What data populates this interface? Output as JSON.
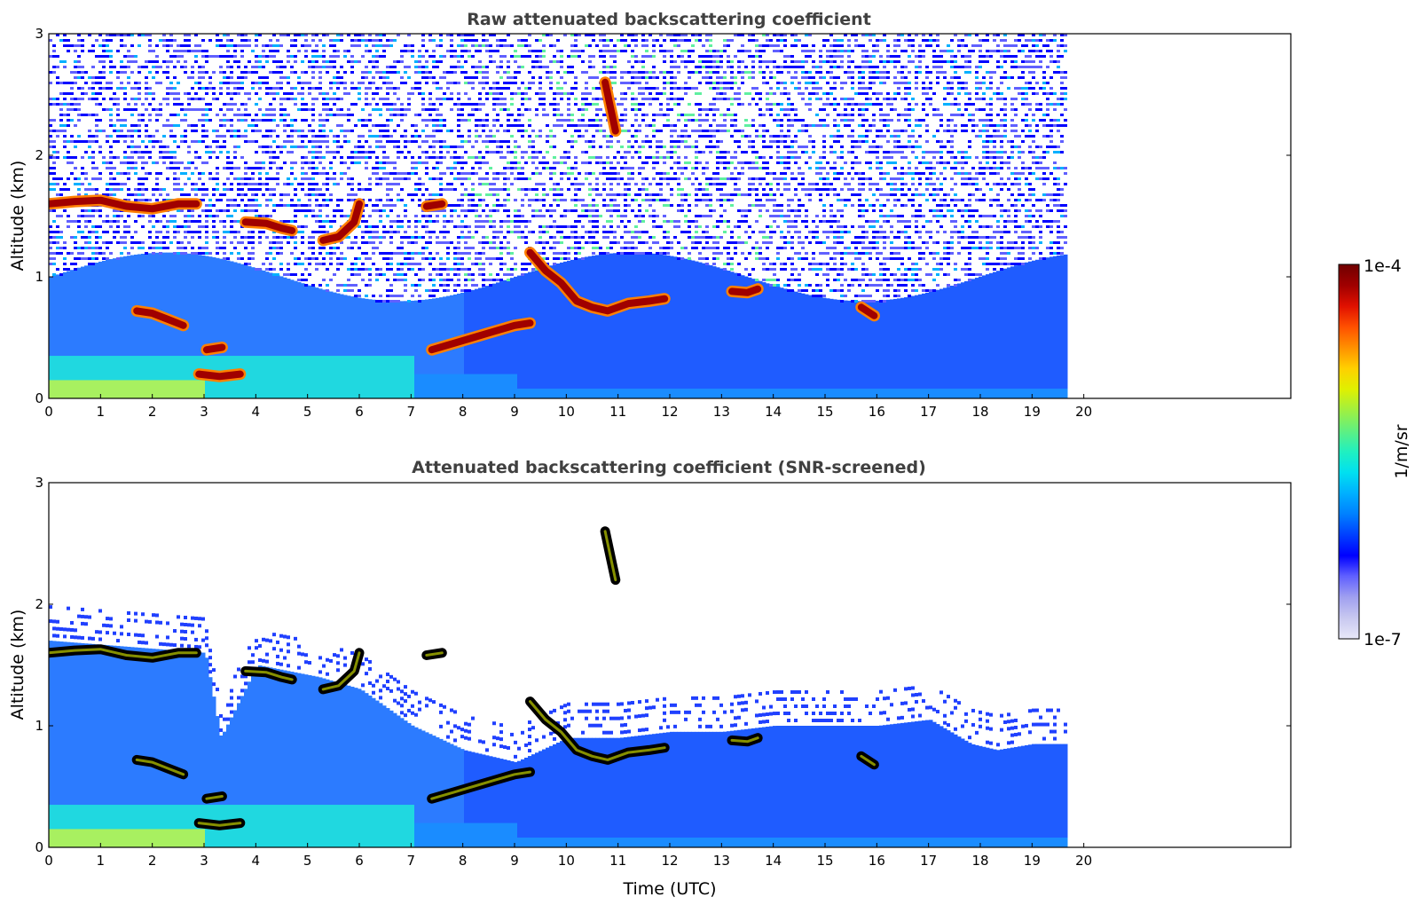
{
  "chart_data": [
    {
      "type": "heatmap",
      "title": "Raw attenuated backscattering coefficient",
      "xlabel": "",
      "ylabel": "Altitude (km)",
      "xlim": [
        0,
        24
      ],
      "ylim": [
        0,
        3
      ],
      "x_ticks": [
        "0",
        "1",
        "2",
        "3",
        "4",
        "5",
        "6",
        "7",
        "8",
        "9",
        "10",
        "11",
        "12",
        "13",
        "14",
        "15",
        "16",
        "17",
        "18",
        "19",
        "20"
      ],
      "y_ticks": [
        "0",
        "1",
        "2",
        "3"
      ],
      "data_end_time": 19.65,
      "colormap": "jet",
      "grid": false,
      "layers": [
        {
          "name": "cloud",
          "points": [
            [
              0,
              1.6
            ],
            [
              0.5,
              1.62
            ],
            [
              1,
              1.63
            ],
            [
              1.5,
              1.58
            ],
            [
              2,
              1.56
            ],
            [
              2.5,
              1.6
            ],
            [
              2.85,
              1.6
            ]
          ]
        },
        {
          "name": "cloud",
          "points": [
            [
              3.05,
              0.4
            ],
            [
              3.35,
              0.42
            ]
          ]
        },
        {
          "name": "cloud",
          "points": [
            [
              3.8,
              1.45
            ],
            [
              4.2,
              1.44
            ],
            [
              4.5,
              1.4
            ],
            [
              4.7,
              1.38
            ]
          ]
        },
        {
          "name": "cloud",
          "points": [
            [
              5.3,
              1.3
            ],
            [
              5.6,
              1.33
            ],
            [
              5.9,
              1.45
            ],
            [
              6.0,
              1.6
            ]
          ]
        },
        {
          "name": "cloud",
          "points": [
            [
              7.3,
              1.58
            ],
            [
              7.6,
              1.6
            ]
          ]
        },
        {
          "name": "cloud",
          "points": [
            [
              1.7,
              0.72
            ],
            [
              2.0,
              0.7
            ],
            [
              2.3,
              0.65
            ],
            [
              2.6,
              0.6
            ]
          ]
        },
        {
          "name": "cloud",
          "points": [
            [
              7.4,
              0.4
            ],
            [
              7.8,
              0.45
            ],
            [
              8.2,
              0.5
            ],
            [
              8.6,
              0.55
            ],
            [
              9.0,
              0.6
            ],
            [
              9.3,
              0.62
            ]
          ]
        },
        {
          "name": "cloud",
          "points": [
            [
              9.3,
              1.2
            ],
            [
              9.6,
              1.05
            ],
            [
              9.9,
              0.95
            ],
            [
              10.2,
              0.8
            ],
            [
              10.5,
              0.75
            ],
            [
              10.8,
              0.72
            ],
            [
              11.2,
              0.78
            ],
            [
              11.6,
              0.8
            ],
            [
              11.9,
              0.82
            ]
          ]
        },
        {
          "name": "cloud",
          "points": [
            [
              10.75,
              2.6
            ],
            [
              10.85,
              2.4
            ],
            [
              10.95,
              2.2
            ]
          ]
        },
        {
          "name": "cloud",
          "points": [
            [
              13.2,
              0.88
            ],
            [
              13.5,
              0.87
            ],
            [
              13.7,
              0.9
            ]
          ]
        },
        {
          "name": "cloud",
          "points": [
            [
              15.7,
              0.75
            ],
            [
              15.95,
              0.68
            ]
          ]
        },
        {
          "name": "cloud",
          "points": [
            [
              2.9,
              0.2
            ],
            [
              3.3,
              0.18
            ],
            [
              3.7,
              0.2
            ]
          ]
        }
      ]
    },
    {
      "type": "heatmap",
      "title": "Attenuated backscattering coefficient (SNR-screened)",
      "xlabel": "Time (UTC)",
      "ylabel": "Altitude (km)",
      "xlim": [
        0,
        24
      ],
      "ylim": [
        0,
        3
      ],
      "x_ticks": [
        "0",
        "1",
        "2",
        "3",
        "4",
        "5",
        "6",
        "7",
        "8",
        "9",
        "10",
        "11",
        "12",
        "13",
        "14",
        "15",
        "16",
        "17",
        "18",
        "19",
        "20"
      ],
      "y_ticks": [
        "0",
        "1",
        "2",
        "3"
      ],
      "data_end_time": 19.65,
      "colormap": "jet",
      "grid": false,
      "layers": [
        {
          "name": "cloud",
          "points": [
            [
              0,
              1.6
            ],
            [
              0.5,
              1.62
            ],
            [
              1,
              1.63
            ],
            [
              1.5,
              1.58
            ],
            [
              2,
              1.56
            ],
            [
              2.5,
              1.6
            ],
            [
              2.85,
              1.6
            ]
          ]
        },
        {
          "name": "cloud",
          "points": [
            [
              3.05,
              0.4
            ],
            [
              3.35,
              0.42
            ]
          ]
        },
        {
          "name": "cloud",
          "points": [
            [
              3.8,
              1.45
            ],
            [
              4.2,
              1.44
            ],
            [
              4.5,
              1.4
            ],
            [
              4.7,
              1.38
            ]
          ]
        },
        {
          "name": "cloud",
          "points": [
            [
              5.3,
              1.3
            ],
            [
              5.6,
              1.33
            ],
            [
              5.9,
              1.45
            ],
            [
              6.0,
              1.6
            ]
          ]
        },
        {
          "name": "cloud",
          "points": [
            [
              7.3,
              1.58
            ],
            [
              7.6,
              1.6
            ]
          ]
        },
        {
          "name": "cloud",
          "points": [
            [
              1.7,
              0.72
            ],
            [
              2.0,
              0.7
            ],
            [
              2.3,
              0.65
            ],
            [
              2.6,
              0.6
            ]
          ]
        },
        {
          "name": "cloud",
          "points": [
            [
              7.4,
              0.4
            ],
            [
              7.8,
              0.45
            ],
            [
              8.2,
              0.5
            ],
            [
              8.6,
              0.55
            ],
            [
              9.0,
              0.6
            ],
            [
              9.3,
              0.62
            ]
          ]
        },
        {
          "name": "cloud",
          "points": [
            [
              9.3,
              1.2
            ],
            [
              9.6,
              1.05
            ],
            [
              9.9,
              0.95
            ],
            [
              10.2,
              0.8
            ],
            [
              10.5,
              0.75
            ],
            [
              10.8,
              0.72
            ],
            [
              11.2,
              0.78
            ],
            [
              11.6,
              0.8
            ],
            [
              11.9,
              0.82
            ]
          ]
        },
        {
          "name": "cloud",
          "points": [
            [
              10.75,
              2.6
            ],
            [
              10.85,
              2.4
            ],
            [
              10.95,
              2.2
            ]
          ]
        },
        {
          "name": "cloud",
          "points": [
            [
              13.2,
              0.88
            ],
            [
              13.5,
              0.87
            ],
            [
              13.7,
              0.9
            ]
          ]
        },
        {
          "name": "cloud",
          "points": [
            [
              15.7,
              0.75
            ],
            [
              15.95,
              0.68
            ]
          ]
        },
        {
          "name": "cloud",
          "points": [
            [
              2.9,
              0.2
            ],
            [
              3.3,
              0.18
            ],
            [
              3.7,
              0.2
            ]
          ]
        }
      ],
      "screened_top": [
        [
          0,
          1.7
        ],
        [
          3,
          1.6
        ],
        [
          3.3,
          0.9
        ],
        [
          4,
          1.5
        ],
        [
          5.2,
          1.4
        ],
        [
          6,
          1.3
        ],
        [
          7,
          1.0
        ],
        [
          8,
          0.8
        ],
        [
          9,
          0.7
        ],
        [
          10,
          0.9
        ],
        [
          11,
          0.9
        ],
        [
          12,
          0.95
        ],
        [
          13,
          0.95
        ],
        [
          14,
          1.0
        ],
        [
          15,
          1.0
        ],
        [
          16,
          1.0
        ],
        [
          17,
          1.05
        ],
        [
          17.8,
          0.85
        ],
        [
          18.3,
          0.8
        ],
        [
          19,
          0.85
        ],
        [
          19.65,
          0.85
        ]
      ]
    }
  ],
  "colorbar": {
    "label": "1/m/sr",
    "min_label": "1e-7",
    "max_label": "1e-4",
    "scale": "log",
    "colors": [
      "#e8e8f8",
      "#c8c8f0",
      "#a0a0f0",
      "#6060ff",
      "#0000ff",
      "#0040ff",
      "#0080ff",
      "#00b0ff",
      "#00e0f0",
      "#20f0c0",
      "#60f080",
      "#a0f040",
      "#e0f000",
      "#ffd000",
      "#ff9000",
      "#ff5000",
      "#e01000",
      "#a00000",
      "#700000"
    ]
  }
}
